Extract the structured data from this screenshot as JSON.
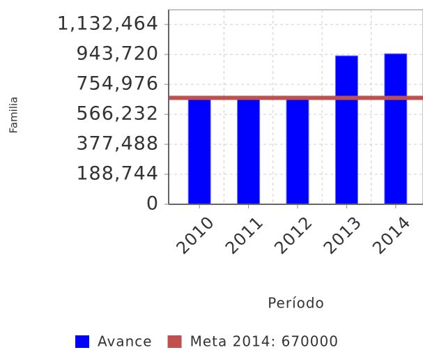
{
  "chart_data": {
    "type": "bar",
    "categories": [
      "2010",
      "2011",
      "2012",
      "2013",
      "2014"
    ],
    "series": [
      {
        "name": "Avance",
        "color": "#0000ff",
        "type": "bar",
        "values": [
          672000,
          672000,
          672000,
          935000,
          948000
        ]
      },
      {
        "name": "Meta 2014: 670000",
        "color": "#c0504d",
        "type": "line",
        "values": [
          670000,
          670000,
          670000,
          670000,
          670000
        ]
      }
    ],
    "x_label": "Período",
    "y_label": "Familia",
    "ylim": [
      0,
      1225000
    ],
    "yticks": [
      0,
      {
        "value": 188744,
        "label": "188,744"
      },
      {
        "value": 377488,
        "label": "377,488"
      },
      {
        "value": 566232,
        "label": "566,232"
      },
      {
        "value": 754976,
        "label": "754,976"
      },
      {
        "value": 943720,
        "label": "943,720"
      },
      {
        "value": 1132464,
        "label": "1,132,464"
      }
    ],
    "grid": true,
    "legend": "bottom"
  }
}
